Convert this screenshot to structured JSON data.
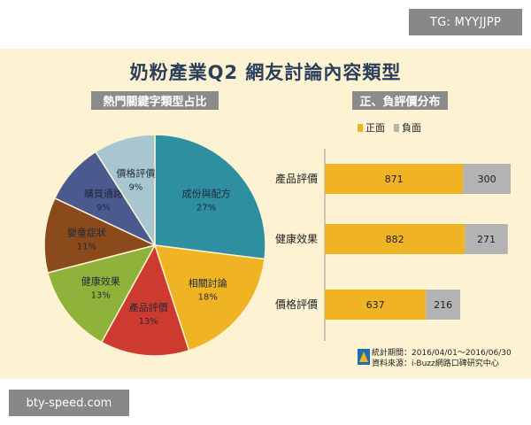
{
  "watermark_top": "TG: MYYJJPP",
  "watermark_bottom": "bty-speed.com",
  "title": "奶粉產業Q2 網友討論內容類型",
  "pie_title": "熱門關鍵字類型占比",
  "bar_title": "正、負評價分布",
  "footer": {
    "period": "統計期間：2016/04/01～2016/06/30",
    "source": "資料來源：i-Buzz網路口碑研究中心"
  },
  "colors": {
    "positive": "#f0b323",
    "negative": "#b3b3b3",
    "pie": [
      "#2e8fa0",
      "#f0b323",
      "#cc3a30",
      "#8fb33a",
      "#8b4a1c",
      "#4a5a8f",
      "#a8c6d2"
    ]
  },
  "chart_data": [
    {
      "type": "pie",
      "title": "熱門關鍵字類型占比",
      "labels": [
        "成份與配方",
        "相關討論",
        "產品評價",
        "健康效果",
        "嬰童症狀",
        "購買通路",
        "價格評價"
      ],
      "values": [
        27,
        18,
        13,
        13,
        11,
        9,
        9
      ],
      "value_labels": [
        "27%",
        "18%",
        "13%",
        "13%",
        "11%",
        "9%",
        "9%"
      ]
    },
    {
      "type": "bar",
      "stacked": true,
      "orientation": "horizontal",
      "title": "正、負評價分布",
      "categories": [
        "產品評價",
        "健康效果",
        "價格評價"
      ],
      "series": [
        {
          "name": "正面",
          "values": [
            871,
            882,
            637
          ]
        },
        {
          "name": "負面",
          "values": [
            300,
            271,
            216
          ]
        }
      ],
      "legend": "top"
    }
  ]
}
